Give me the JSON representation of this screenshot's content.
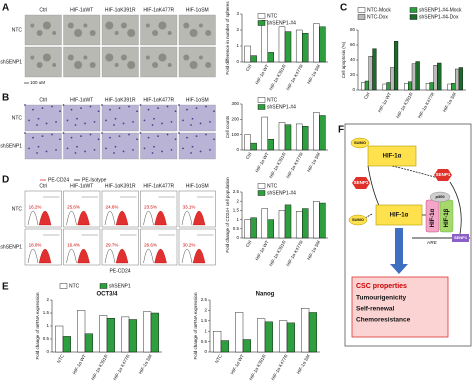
{
  "letters": [
    "A",
    "B",
    "C",
    "D",
    "E",
    "F"
  ],
  "panel_a": {
    "columns": [
      "Ctrl",
      "HIF-1αWT",
      "HIF-1αK391R",
      "HIF-1αK477R",
      "HIF-1αSM"
    ],
    "rows": [
      "NTC",
      "shSENP1"
    ],
    "scale": "100 uM"
  },
  "panel_b": {
    "columns": [
      "Ctrl",
      "HIF-1αWT",
      "HIF-1αK391R",
      "HIF-1αK477R",
      "HIF-1αSM"
    ],
    "rows": [
      "NTC",
      "shSENP1"
    ]
  },
  "panel_d": {
    "columns": [
      "Ctrl",
      "HIF-1αWT",
      "HIF-1αK391R",
      "HIF-1αK477R",
      "HIF-1αSM"
    ],
    "rows": [
      "NTC",
      "shSENP1"
    ],
    "percent": [
      [
        "16.2%",
        "25.6%",
        "24.6%",
        "23.5%",
        "33.1%"
      ],
      [
        "18.0%",
        "16.4%",
        "29.7%",
        "26.6%",
        "30.2%"
      ]
    ],
    "legend": [
      "PE-CD24",
      "PE-Isotype"
    ],
    "xlabel": "PE-CD24"
  },
  "panel_f": {
    "sumo_top": "SUMO",
    "hif_top": "HIF-1α",
    "senp1_left": "SENP1",
    "sumo_mid": "SUMO",
    "hif_mid": "HIF-1α",
    "senp1_right": "SENP1",
    "p300": "p300",
    "hif_a": "HIF-1α",
    "hif_b": "HIF-1β",
    "hre": "HRE",
    "senp1_gene": "SENP1",
    "csc": [
      "CSC properties",
      "Tumourigenicity",
      "Self-renewal",
      "Chemoresistance"
    ]
  },
  "chart_data": [
    {
      "type": "bar",
      "ylabel": "Fold difference in number of spheres",
      "categories": [
        "Ctrl",
        "HIF-1α WT",
        "HIF-1α K391R",
        "HIF-1α K477R",
        "HIF-1α SM"
      ],
      "series": [
        {
          "name": "NTC",
          "color": "#ffffff",
          "values": [
            1,
            2.6,
            2.2,
            2.0,
            2.4
          ]
        },
        {
          "name": "shSENP1-#4",
          "color": "#2e9e3e",
          "values": [
            0.4,
            0.6,
            1.9,
            1.8,
            2.2
          ]
        }
      ],
      "ylim": [
        0,
        3
      ],
      "yticks": [
        0,
        1,
        2,
        3
      ],
      "legend": true
    },
    {
      "type": "bar",
      "ylabel": "Cell counts",
      "categories": [
        "Ctrl",
        "HIF-1α WT",
        "HIF-1α K391R",
        "HIF-1α K477R",
        "HIF-1α SM"
      ],
      "series": [
        {
          "name": "NTC",
          "color": "#ffffff",
          "values": [
            100,
            215,
            180,
            170,
            245
          ]
        },
        {
          "name": "shSENP1-#4",
          "color": "#2e9e3e",
          "values": [
            45,
            70,
            165,
            155,
            225
          ]
        }
      ],
      "ylim": [
        0,
        300
      ],
      "yticks": [
        0,
        100,
        200,
        300
      ],
      "legend": true
    },
    {
      "type": "bar",
      "ylabel": "Cell apoptosis (%)",
      "categories": [
        "Ctrl",
        "HIF-1α WT",
        "HIF-1α K391R",
        "HIF-1α K477R",
        "HIF-1α SM"
      ],
      "series": [
        {
          "name": "NTC-Mock",
          "color": "#ffffff",
          "values": [
            10,
            8,
            9,
            9,
            8
          ]
        },
        {
          "name": "shSENP1-#4-Mock",
          "color": "#2e9e3e",
          "values": [
            12,
            10,
            11,
            10,
            9
          ]
        },
        {
          "name": "NTC-Dox",
          "color": "#bbbbbb",
          "values": [
            45,
            30,
            35,
            33,
            28
          ]
        },
        {
          "name": "shSENP1-#4-Dox",
          "color": "#1d6b2a",
          "values": [
            55,
            65,
            38,
            36,
            30
          ]
        }
      ],
      "ylim": [
        0,
        80
      ],
      "yticks": [
        0,
        20,
        40,
        60,
        80
      ],
      "legend": true
    },
    {
      "type": "bar",
      "ylabel": "Fold change of CD24+ cell population",
      "categories": [
        "Ctrl",
        "HIF-1α WT",
        "HIF-1α K391R",
        "HIF-1α K477R",
        "HIF-1α SM"
      ],
      "series": [
        {
          "name": "NTC",
          "color": "#ffffff",
          "values": [
            1,
            1.6,
            1.5,
            1.45,
            2.0
          ]
        },
        {
          "name": "shSENP1-#4",
          "color": "#2e9e3e",
          "values": [
            1.1,
            1.0,
            1.8,
            1.6,
            1.9
          ]
        }
      ],
      "ylim": [
        0,
        2.5
      ],
      "yticks": [
        0,
        0.5,
        1,
        1.5,
        2,
        2.5
      ],
      "legend": true
    },
    {
      "type": "bar",
      "title": "OCT3/4",
      "ylabel": "Fold change of mRNA expression",
      "categories": [
        "NTC",
        "HIF-1α WT",
        "HIF-1α K391R",
        "HIF-1α K477R",
        "HIF-1α SM"
      ],
      "series": [
        {
          "name": "NTC",
          "color": "#ffffff",
          "values": [
            1,
            1.6,
            1.4,
            1.35,
            1.55
          ]
        },
        {
          "name": "shSENP1",
          "color": "#2e9e3e",
          "values": [
            0.6,
            0.7,
            1.3,
            1.25,
            1.5
          ]
        }
      ],
      "ylim": [
        0,
        2
      ],
      "yticks": [
        0,
        0.5,
        1,
        1.5,
        2
      ],
      "legend": true
    },
    {
      "type": "bar",
      "title": "Nanog",
      "ylabel": "Fold change of mRNA expression",
      "categories": [
        "NTC",
        "HIF-1α WT",
        "HIF-1α K391R",
        "HIF-1α K477R",
        "HIF-1α SM"
      ],
      "series": [
        {
          "color": "#ffffff",
          "values": [
            1,
            1.9,
            1.6,
            1.5,
            2.1
          ]
        },
        {
          "color": "#2e9e3e",
          "values": [
            0.55,
            0.6,
            1.45,
            1.4,
            1.9
          ]
        }
      ],
      "ylim": [
        0,
        2.5
      ],
      "yticks": [
        0,
        0.5,
        1,
        1.5,
        2,
        2.5
      ],
      "legend": false
    }
  ]
}
